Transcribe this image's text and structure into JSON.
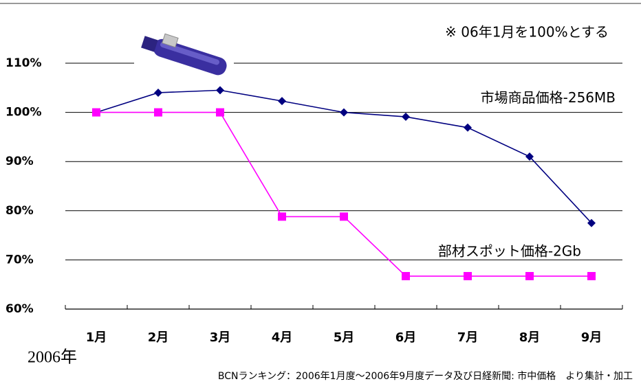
{
  "chart_data": {
    "type": "line",
    "subtitle": "※ 06年1月を100%とする",
    "xlabel": "2006年",
    "source": "BCNランキング：2006年1月度～2006年9月度データ及び日経新聞: 市中価格　より集計・加工",
    "categories": [
      "1月",
      "2月",
      "3月",
      "4月",
      "5月",
      "6月",
      "7月",
      "8月",
      "9月"
    ],
    "series": [
      {
        "name": "市場商品価格-256MB",
        "color": "#000080",
        "marker": "diamond",
        "values": [
          100,
          104,
          104.5,
          102.3,
          100,
          99.1,
          96.9,
          91,
          77.5
        ]
      },
      {
        "name": "部材スポット価格-2Gb",
        "color": "#ff00ff",
        "marker": "square",
        "values": [
          100,
          100,
          100,
          78.8,
          78.8,
          66.7,
          66.7,
          66.7,
          66.7
        ]
      }
    ],
    "ylim": [
      60,
      110
    ],
    "yticks": [
      {
        "value": 60,
        "label": "60%"
      },
      {
        "value": 70,
        "label": "70%"
      },
      {
        "value": 80,
        "label": "80%"
      },
      {
        "value": 90,
        "label": "90%"
      },
      {
        "value": 100,
        "label": "100%"
      },
      {
        "value": 110,
        "label": "110%"
      }
    ],
    "grid": true
  }
}
